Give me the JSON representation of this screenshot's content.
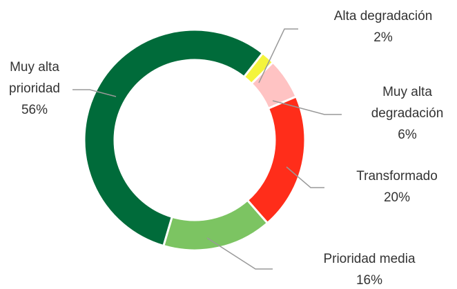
{
  "chart_data": {
    "type": "donut",
    "categories": [
      "Alta degradación",
      "Muy alta degradación",
      "Transformado",
      "Prioridad media",
      "Muy alta prioridad"
    ],
    "values": [
      2,
      6,
      20,
      16,
      56
    ],
    "value_labels": [
      "2%",
      "6%",
      "20%",
      "16%",
      "56%"
    ],
    "colors": [
      "#f4f43c",
      "#ffc3c3",
      "#ff2d1a",
      "#7cc462",
      "#006b3a"
    ]
  }
}
